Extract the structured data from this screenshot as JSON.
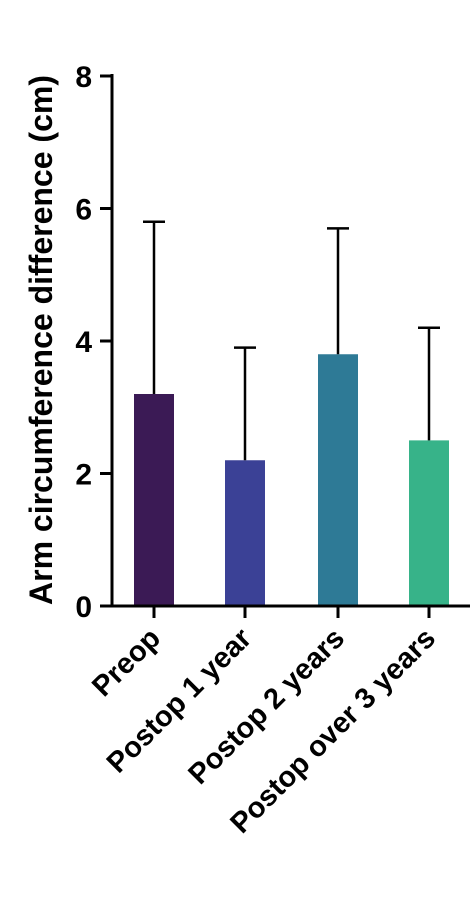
{
  "chart_data": {
    "type": "bar",
    "title": "",
    "xlabel": "",
    "ylabel": "Arm circumference difference (cm)",
    "ylim": [
      0,
      8
    ],
    "yticks": [
      "0",
      "2",
      "4",
      "6",
      "8"
    ],
    "categories": [
      "Preop",
      "Postop 1 year",
      "Postop 2 years",
      "Postop over 3 years"
    ],
    "values": [
      3.2,
      2.2,
      3.8,
      2.5
    ],
    "error_upper": [
      5.8,
      3.9,
      5.7,
      4.2
    ],
    "colors": [
      "#3b1a55",
      "#3b4196",
      "#2e7a96",
      "#37b389"
    ],
    "grid": false,
    "legend": "none"
  }
}
